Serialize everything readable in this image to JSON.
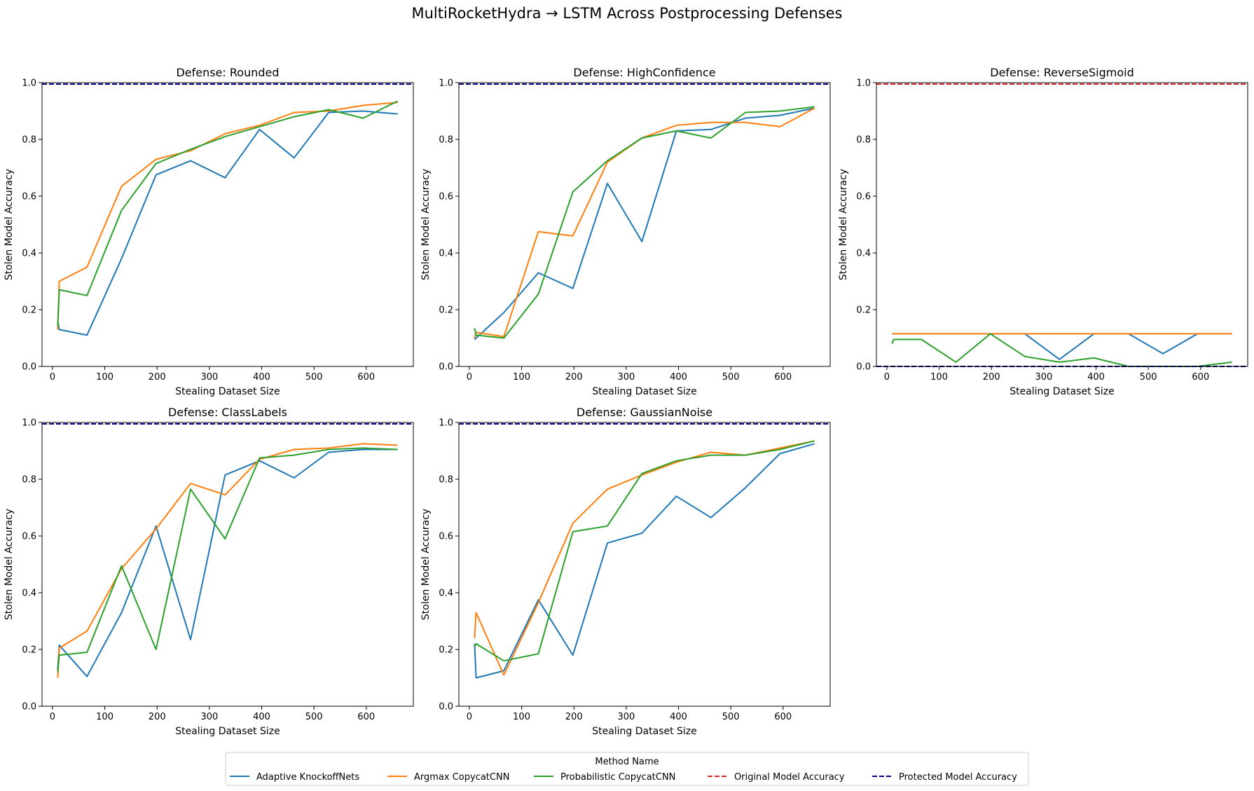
{
  "figure": {
    "title": "MultiRocketHydra → LSTM Across Postprocessing Defenses"
  },
  "legend": {
    "title": "Method Name",
    "entries": [
      {
        "label": "Adaptive KnockoffNets",
        "color": "#1f77b4",
        "dash": false
      },
      {
        "label": "Argmax CopycatCNN",
        "color": "#ff7f0e",
        "dash": false
      },
      {
        "label": "Probabilistic CopycatCNN",
        "color": "#2ca02c",
        "dash": false
      },
      {
        "label": "Original Model Accuracy",
        "color": "#d62728",
        "dash": true
      },
      {
        "label": "Protected Model Accuracy",
        "color": "#00008b",
        "dash": true
      }
    ]
  },
  "chart_data": [
    {
      "type": "line",
      "title": "Defense: Rounded",
      "xlabel": "Stealing Dataset Size",
      "ylabel": "Stolen Model Accuracy",
      "xlim": [
        -20,
        690
      ],
      "ylim": [
        0,
        1.0
      ],
      "xticks": [
        0,
        100,
        200,
        300,
        400,
        500,
        600
      ],
      "yticks": [
        0.0,
        0.2,
        0.4,
        0.6,
        0.8,
        1.0
      ],
      "reference_lines": {
        "original": 0.995,
        "protected": 0.995
      },
      "series": [
        {
          "name": "Adaptive KnockoffNets",
          "x": [
            10,
            13,
            66,
            132,
            198,
            264,
            330,
            396,
            462,
            528,
            594,
            660
          ],
          "y": [
            0.16,
            0.13,
            0.11,
            0.38,
            0.675,
            0.725,
            0.665,
            0.835,
            0.735,
            0.895,
            0.9,
            0.89
          ]
        },
        {
          "name": "Argmax CopycatCNN",
          "x": [
            10,
            13,
            66,
            132,
            198,
            264,
            330,
            396,
            462,
            528,
            594,
            660
          ],
          "y": [
            0.13,
            0.3,
            0.35,
            0.635,
            0.73,
            0.76,
            0.82,
            0.85,
            0.895,
            0.9,
            0.92,
            0.93
          ]
        },
        {
          "name": "Probabilistic CopycatCNN",
          "x": [
            10,
            13,
            66,
            132,
            198,
            264,
            330,
            396,
            462,
            528,
            594,
            660
          ],
          "y": [
            0.14,
            0.27,
            0.25,
            0.55,
            0.715,
            0.765,
            0.81,
            0.845,
            0.88,
            0.905,
            0.875,
            0.935
          ]
        }
      ]
    },
    {
      "type": "line",
      "title": "Defense: HighConfidence",
      "xlabel": "Stealing Dataset Size",
      "ylabel": "Stolen Model Accuracy",
      "xlim": [
        -20,
        690
      ],
      "ylim": [
        0,
        1.0
      ],
      "xticks": [
        0,
        100,
        200,
        300,
        400,
        500,
        600
      ],
      "yticks": [
        0.0,
        0.2,
        0.4,
        0.6,
        0.8,
        1.0
      ],
      "reference_lines": {
        "original": 0.995,
        "protected": 0.995
      },
      "series": [
        {
          "name": "Adaptive KnockoffNets",
          "x": [
            10,
            13,
            66,
            132,
            198,
            264,
            330,
            396,
            462,
            528,
            594,
            660
          ],
          "y": [
            0.095,
            0.1,
            0.19,
            0.33,
            0.275,
            0.645,
            0.44,
            0.83,
            0.835,
            0.875,
            0.885,
            0.91
          ]
        },
        {
          "name": "Argmax CopycatCNN",
          "x": [
            10,
            13,
            66,
            132,
            198,
            264,
            330,
            396,
            462,
            528,
            594,
            660
          ],
          "y": [
            0.1,
            0.12,
            0.105,
            0.475,
            0.46,
            0.72,
            0.805,
            0.85,
            0.86,
            0.86,
            0.845,
            0.91
          ]
        },
        {
          "name": "Probabilistic CopycatCNN",
          "x": [
            10,
            13,
            66,
            132,
            198,
            264,
            330,
            396,
            462,
            528,
            594,
            660
          ],
          "y": [
            0.135,
            0.11,
            0.1,
            0.255,
            0.615,
            0.725,
            0.805,
            0.83,
            0.805,
            0.895,
            0.9,
            0.915
          ]
        }
      ]
    },
    {
      "type": "line",
      "title": "Defense: ReverseSigmoid",
      "xlabel": "Stealing Dataset Size",
      "ylabel": "Stolen Model Accuracy",
      "xlim": [
        -20,
        690
      ],
      "ylim": [
        0,
        1.0
      ],
      "xticks": [
        0,
        100,
        200,
        300,
        400,
        500,
        600
      ],
      "yticks": [
        0.0,
        0.2,
        0.4,
        0.6,
        0.8,
        1.0
      ],
      "reference_lines": {
        "original": 0.995,
        "protected": 0.0
      },
      "series": [
        {
          "name": "Adaptive KnockoffNets",
          "x": [
            10,
            13,
            66,
            132,
            198,
            264,
            330,
            396,
            462,
            528,
            594,
            660
          ],
          "y": [
            0.115,
            0.115,
            0.115,
            0.115,
            0.115,
            0.115,
            0.025,
            0.115,
            0.115,
            0.045,
            0.115,
            0.115
          ]
        },
        {
          "name": "Argmax CopycatCNN",
          "x": [
            10,
            13,
            66,
            132,
            198,
            264,
            330,
            396,
            462,
            528,
            594,
            660
          ],
          "y": [
            0.115,
            0.115,
            0.115,
            0.115,
            0.115,
            0.115,
            0.115,
            0.115,
            0.115,
            0.115,
            0.115,
            0.115
          ]
        },
        {
          "name": "Probabilistic CopycatCNN",
          "x": [
            10,
            13,
            66,
            132,
            198,
            264,
            330,
            396,
            462,
            528,
            594,
            660
          ],
          "y": [
            0.08,
            0.095,
            0.095,
            0.015,
            0.115,
            0.035,
            0.015,
            0.03,
            0.0,
            0.0,
            0.0,
            0.015
          ]
        }
      ]
    },
    {
      "type": "line",
      "title": "Defense: ClassLabels",
      "xlabel": "Stealing Dataset Size",
      "ylabel": "Stolen Model Accuracy",
      "xlim": [
        -20,
        690
      ],
      "ylim": [
        0,
        1.0
      ],
      "xticks": [
        0,
        100,
        200,
        300,
        400,
        500,
        600
      ],
      "yticks": [
        0.0,
        0.2,
        0.4,
        0.6,
        0.8,
        1.0
      ],
      "reference_lines": {
        "original": 0.995,
        "protected": 0.995
      },
      "series": [
        {
          "name": "Adaptive KnockoffNets",
          "x": [
            10,
            13,
            66,
            132,
            198,
            264,
            330,
            396,
            462,
            528,
            594,
            660
          ],
          "y": [
            0.13,
            0.215,
            0.105,
            0.33,
            0.635,
            0.235,
            0.815,
            0.865,
            0.805,
            0.895,
            0.905,
            0.905
          ]
        },
        {
          "name": "Argmax CopycatCNN",
          "x": [
            10,
            13,
            66,
            132,
            198,
            264,
            330,
            396,
            462,
            528,
            594,
            660
          ],
          "y": [
            0.1,
            0.205,
            0.265,
            0.485,
            0.625,
            0.785,
            0.745,
            0.87,
            0.905,
            0.91,
            0.925,
            0.92
          ]
        },
        {
          "name": "Probabilistic CopycatCNN",
          "x": [
            10,
            13,
            66,
            132,
            198,
            264,
            330,
            396,
            462,
            528,
            594,
            660
          ],
          "y": [
            0.12,
            0.18,
            0.19,
            0.495,
            0.2,
            0.765,
            0.59,
            0.875,
            0.885,
            0.905,
            0.91,
            0.905
          ]
        }
      ]
    },
    {
      "type": "line",
      "title": "Defense: GaussianNoise",
      "xlabel": "Stealing Dataset Size",
      "ylabel": "Stolen Model Accuracy",
      "xlim": [
        -20,
        690
      ],
      "ylim": [
        0,
        1.0
      ],
      "xticks": [
        0,
        100,
        200,
        300,
        400,
        500,
        600
      ],
      "yticks": [
        0.0,
        0.2,
        0.4,
        0.6,
        0.8,
        1.0
      ],
      "reference_lines": {
        "original": 0.995,
        "protected": 0.995
      },
      "series": [
        {
          "name": "Adaptive KnockoffNets",
          "x": [
            10,
            13,
            66,
            132,
            198,
            264,
            330,
            396,
            462,
            528,
            594,
            660
          ],
          "y": [
            0.22,
            0.1,
            0.125,
            0.375,
            0.18,
            0.575,
            0.61,
            0.74,
            0.665,
            0.77,
            0.89,
            0.925
          ]
        },
        {
          "name": "Argmax CopycatCNN",
          "x": [
            10,
            13,
            66,
            132,
            198,
            264,
            330,
            396,
            462,
            528,
            594,
            660
          ],
          "y": [
            0.24,
            0.33,
            0.11,
            0.365,
            0.645,
            0.765,
            0.815,
            0.86,
            0.895,
            0.885,
            0.91,
            0.935
          ]
        },
        {
          "name": "Probabilistic CopycatCNN",
          "x": [
            10,
            13,
            66,
            132,
            198,
            264,
            330,
            396,
            462,
            528,
            594,
            660
          ],
          "y": [
            0.21,
            0.22,
            0.16,
            0.185,
            0.615,
            0.635,
            0.82,
            0.865,
            0.885,
            0.885,
            0.905,
            0.935
          ]
        }
      ]
    }
  ]
}
